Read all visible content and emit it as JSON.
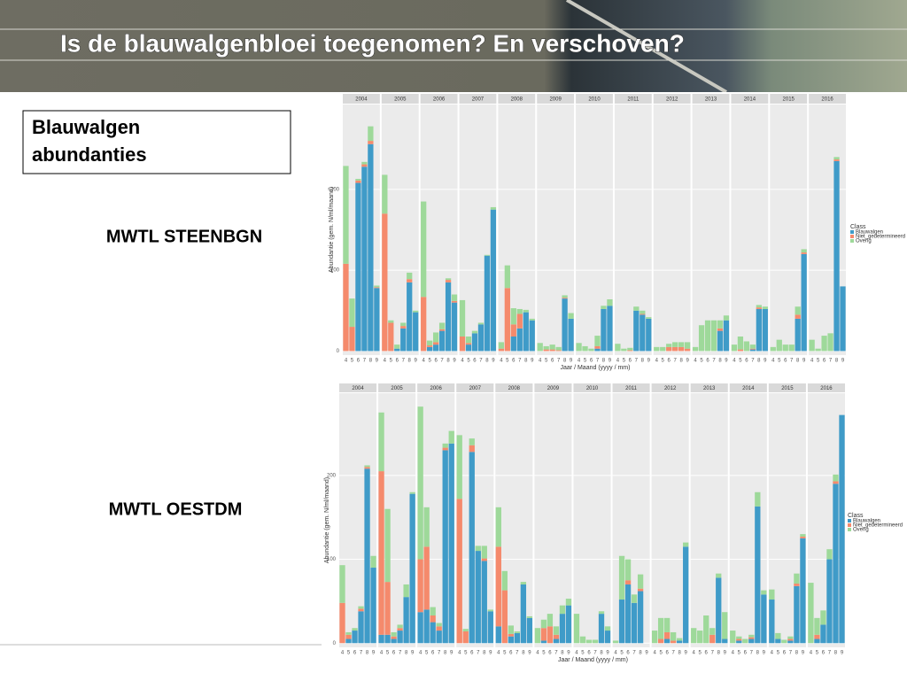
{
  "slide": {
    "title": "Is de blauwalgenbloei toegenomen? En verschoven?",
    "box_text": [
      "Blauwalgen",
      "abundanties"
    ]
  },
  "chart_data": [
    {
      "type": "bar",
      "stacked": true,
      "label": "MWTL STEENBGN",
      "facets": [
        "2004",
        "2005",
        "2006",
        "2007",
        "2008",
        "2009",
        "2010",
        "2011",
        "2012",
        "2013",
        "2014",
        "2015",
        "2016"
      ],
      "categories": [
        "4",
        "5",
        "6",
        "7",
        "8",
        "9"
      ],
      "ylim": [
        -5,
        305
      ],
      "yticks": [
        0,
        100,
        200
      ],
      "grid": true,
      "x_label": "Jaar / Maand (yyyy / mm)",
      "y_label": "Abundantie (gem. N/ml/maand)",
      "legend_title": "Class",
      "series": [
        {
          "name": "Blauwalgen",
          "color": "#3f9bc8",
          "values": [
            [
              0,
              0,
              208,
              228,
              256,
              78
            ],
            [
              0,
              0,
              3,
              28,
              85,
              48
            ],
            [
              0,
              5,
              8,
              25,
              85,
              60
            ],
            [
              0,
              8,
              22,
              33,
              118,
              175
            ],
            [
              0,
              0,
              18,
              28,
              48,
              38
            ],
            [
              0,
              0,
              0,
              0,
              65,
              40
            ],
            [
              0,
              0,
              0,
              3,
              52,
              56
            ],
            [
              0,
              0,
              0,
              50,
              45,
              40
            ],
            [
              0,
              0,
              0,
              0,
              0,
              0
            ],
            [
              0,
              0,
              0,
              0,
              25,
              38
            ],
            [
              0,
              0,
              0,
              2,
              52,
              52
            ],
            [
              0,
              0,
              0,
              0,
              40,
              120
            ],
            [
              0,
              0,
              0,
              0,
              235,
              80
            ]
          ]
        },
        {
          "name": "Niet_gedetermineerd",
          "color": "#f58a6c",
          "values": [
            [
              108,
              30,
              3,
              3,
              4,
              1
            ],
            [
              170,
              35,
              0,
              3,
              4,
              0
            ],
            [
              67,
              2,
              3,
              2,
              3,
              2
            ],
            [
              18,
              2,
              0,
              0,
              0,
              0
            ],
            [
              3,
              78,
              15,
              18,
              0,
              0
            ],
            [
              0,
              2,
              2,
              1,
              1,
              0
            ],
            [
              0,
              0,
              0,
              3,
              0,
              0
            ],
            [
              0,
              0,
              1,
              0,
              1,
              0
            ],
            [
              0,
              0,
              5,
              5,
              5,
              3
            ],
            [
              0,
              0,
              0,
              0,
              3,
              0
            ],
            [
              0,
              2,
              0,
              1,
              2,
              0
            ],
            [
              0,
              0,
              0,
              0,
              5,
              2
            ],
            [
              0,
              0,
              0,
              0,
              2,
              0
            ]
          ]
        },
        {
          "name": "Overig",
          "color": "#9ed99a",
          "values": [
            [
              121,
              35,
              2,
              3,
              18,
              2
            ],
            [
              48,
              3,
              5,
              4,
              8,
              2
            ],
            [
              118,
              6,
              12,
              8,
              2,
              8
            ],
            [
              45,
              8,
              3,
              2,
              1,
              3
            ],
            [
              8,
              28,
              20,
              6,
              3,
              2
            ],
            [
              10,
              4,
              6,
              4,
              3,
              7
            ],
            [
              10,
              6,
              3,
              13,
              4,
              8
            ],
            [
              9,
              3,
              3,
              5,
              4,
              2
            ],
            [
              5,
              5,
              4,
              6,
              6,
              8
            ],
            [
              5,
              32,
              38,
              38,
              10,
              6
            ],
            [
              8,
              16,
              12,
              5,
              3,
              3
            ],
            [
              5,
              14,
              8,
              8,
              10,
              4
            ],
            [
              14,
              3,
              19,
              22,
              3,
              0
            ]
          ]
        }
      ]
    },
    {
      "type": "bar",
      "stacked": true,
      "label": "MWTL OESTDM",
      "facets": [
        "2004",
        "2005",
        "2006",
        "2007",
        "2008",
        "2009",
        "2010",
        "2011",
        "2012",
        "2013",
        "2014",
        "2015",
        "2016"
      ],
      "categories": [
        "4",
        "5",
        "6",
        "7",
        "8",
        "9"
      ],
      "ylim": [
        -5,
        298
      ],
      "yticks": [
        0,
        100,
        200
      ],
      "grid": true,
      "x_label": "Jaar / Maand (yyyy / mm)",
      "y_label": "Abundantie (gem. N/ml/maand)",
      "legend_title": "Class",
      "series": [
        {
          "name": "Blauwalgen",
          "color": "#3f9bc8",
          "values": [
            [
              0,
              5,
              15,
              38,
              208,
              90
            ],
            [
              10,
              10,
              5,
              15,
              55,
              178
            ],
            [
              37,
              40,
              25,
              15,
              230,
              238
            ],
            [
              0,
              0,
              228,
              110,
              98,
              38
            ],
            [
              20,
              0,
              8,
              12,
              70,
              30
            ],
            [
              0,
              3,
              0,
              5,
              35,
              45
            ],
            [
              0,
              0,
              0,
              0,
              35,
              15
            ],
            [
              0,
              52,
              70,
              48,
              62,
              0
            ],
            [
              0,
              0,
              5,
              0,
              3,
              115
            ],
            [
              0,
              0,
              0,
              0,
              78,
              5
            ],
            [
              0,
              3,
              0,
              5,
              163,
              58
            ],
            [
              52,
              5,
              0,
              3,
              68,
              125
            ],
            [
              0,
              5,
              22,
              100,
              190,
              272
            ]
          ]
        },
        {
          "name": "Niet_gedetermineerd",
          "color": "#f58a6c",
          "values": [
            [
              48,
              5,
              0,
              3,
              2,
              0
            ],
            [
              195,
              63,
              3,
              3,
              0,
              0
            ],
            [
              63,
              75,
              8,
              5,
              3,
              0
            ],
            [
              172,
              14,
              8,
              0,
              3,
              0
            ],
            [
              95,
              63,
              3,
              0,
              0,
              0
            ],
            [
              0,
              15,
              20,
              5,
              0,
              0
            ],
            [
              0,
              0,
              0,
              0,
              0,
              0
            ],
            [
              0,
              0,
              5,
              0,
              3,
              0
            ],
            [
              0,
              5,
              8,
              3,
              0,
              0
            ],
            [
              0,
              0,
              0,
              10,
              0,
              0
            ],
            [
              0,
              2,
              0,
              2,
              0,
              0
            ],
            [
              0,
              0,
              0,
              2,
              3,
              2
            ],
            [
              0,
              5,
              0,
              0,
              3,
              0
            ]
          ]
        },
        {
          "name": "Overig",
          "color": "#9ed99a",
          "values": [
            [
              45,
              3,
              3,
              3,
              2,
              14
            ],
            [
              70,
              87,
              5,
              4,
              15,
              2
            ],
            [
              182,
              47,
              10,
              4,
              5,
              15
            ],
            [
              76,
              3,
              8,
              6,
              15,
              2
            ],
            [
              47,
              23,
              10,
              2,
              3,
              2
            ],
            [
              18,
              10,
              15,
              10,
              10,
              8
            ],
            [
              35,
              8,
              4,
              4,
              3,
              5
            ],
            [
              3,
              52,
              25,
              10,
              17,
              0
            ],
            [
              15,
              25,
              17,
              10,
              3,
              5
            ],
            [
              18,
              15,
              33,
              8,
              5,
              32
            ],
            [
              15,
              3,
              5,
              3,
              17,
              5
            ],
            [
              12,
              7,
              4,
              3,
              12,
              3
            ],
            [
              72,
              20,
              17,
              12,
              8,
              0
            ]
          ]
        }
      ]
    }
  ]
}
